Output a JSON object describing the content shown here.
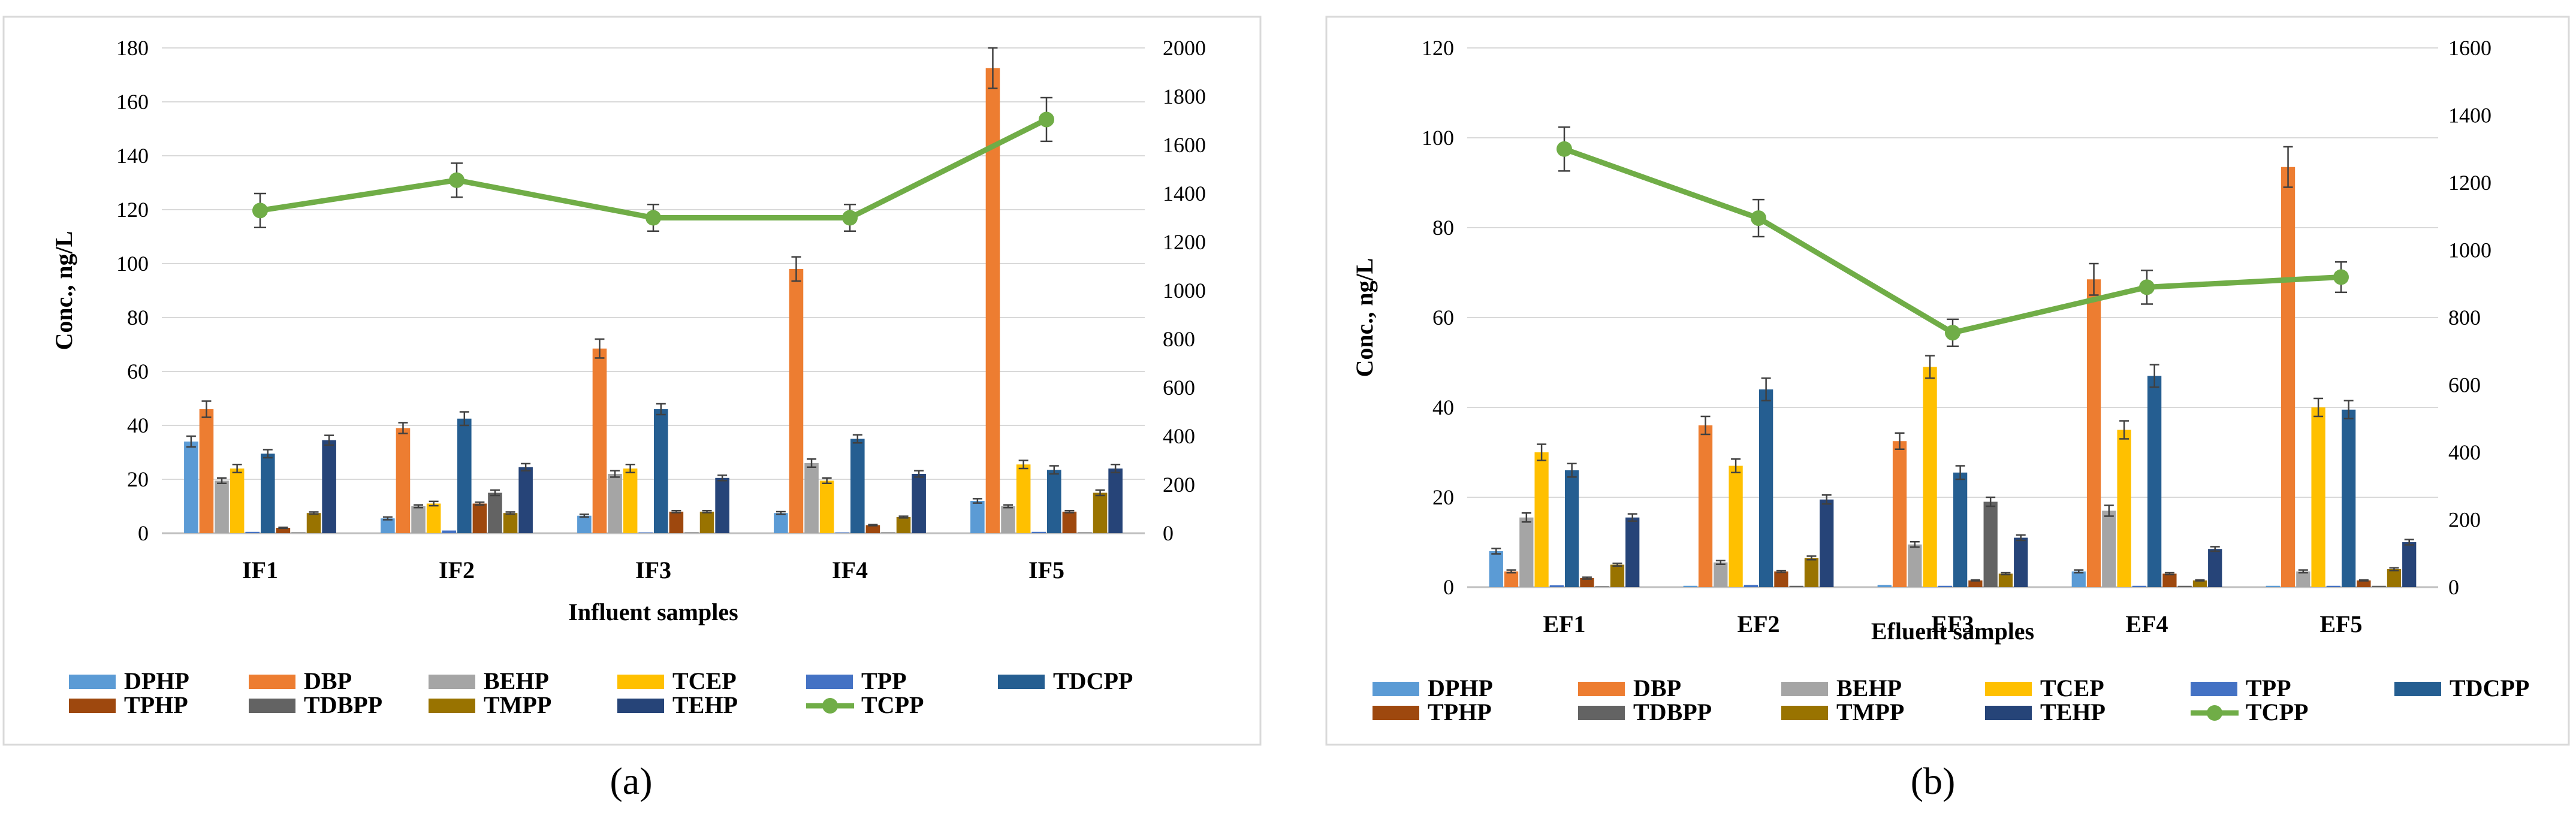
{
  "colors": {
    "DPHP": "#5b9bd5",
    "DBP": "#ed7d31",
    "BEHP": "#a5a5a5",
    "TCEP": "#ffc000",
    "TPP": "#4472c4",
    "TDCPP": "#255e91",
    "TPHP": "#9e480e",
    "TDBPP": "#636363",
    "TMPP": "#997300",
    "TEHP": "#264478",
    "TCPP": "#70ad47",
    "frame": "#d9d9d9",
    "grid": "#d9d9d9",
    "axis_text": "#000000",
    "error_bar": "#404040"
  },
  "chart_data": [
    {
      "type": "bar",
      "panel_label": "(a)",
      "xlabel": "Influent samples",
      "ylabel": "Conc., ng/L",
      "ylim": [
        0,
        180
      ],
      "yticks": [
        "0",
        "20",
        "40",
        "60",
        "80",
        "100",
        "120",
        "140",
        "160",
        "180"
      ],
      "y2lim": [
        0,
        2000
      ],
      "y2ticks": [
        "0",
        "200",
        "400",
        "600",
        "800",
        "1000",
        "1200",
        "1400",
        "1600",
        "1800",
        "2000"
      ],
      "categories": [
        "IF1",
        "IF2",
        "IF3",
        "IF4",
        "IF5"
      ],
      "series": [
        {
          "name": "DPHP",
          "values": [
            34,
            5.5,
            6.5,
            7.5,
            12
          ],
          "errors": [
            2,
            0.5,
            0.5,
            0.5,
            0.8
          ]
        },
        {
          "name": "DBP",
          "values": [
            46,
            39,
            68.5,
            98,
            172.5
          ],
          "errors": [
            3,
            2,
            3.5,
            4.5,
            7.5
          ]
        },
        {
          "name": "BEHP",
          "values": [
            19.5,
            10,
            22,
            26,
            10
          ],
          "errors": [
            1,
            0.5,
            1.2,
            1.5,
            0.5
          ]
        },
        {
          "name": "TCEP",
          "values": [
            24,
            11,
            24,
            19.5,
            25.5
          ],
          "errors": [
            1.5,
            0.8,
            1.5,
            1,
            1.5
          ]
        },
        {
          "name": "TPP",
          "values": [
            0.5,
            1,
            0.3,
            0.3,
            0.5
          ],
          "errors": [
            0,
            0,
            0,
            0,
            0
          ]
        },
        {
          "name": "TDCPP",
          "values": [
            29.5,
            42.5,
            46,
            35,
            23.5
          ],
          "errors": [
            1.5,
            2.5,
            2,
            1.5,
            1.5
          ]
        },
        {
          "name": "TPHP",
          "values": [
            2,
            11,
            8,
            3,
            8
          ],
          "errors": [
            0.2,
            0.5,
            0.4,
            0.2,
            0.4
          ]
        },
        {
          "name": "TDBPP",
          "values": [
            0.3,
            15,
            0.3,
            0.3,
            0.3
          ],
          "errors": [
            0,
            1,
            0,
            0,
            0
          ]
        },
        {
          "name": "TMPP",
          "values": [
            7.5,
            7.5,
            8,
            6,
            15
          ],
          "errors": [
            0.4,
            0.4,
            0.4,
            0.3,
            1
          ]
        },
        {
          "name": "TEHP",
          "values": [
            34.5,
            24.5,
            20.5,
            22,
            24
          ],
          "errors": [
            1.8,
            1.3,
            1,
            1.2,
            1.5
          ]
        }
      ],
      "line": {
        "name": "TCPP",
        "axis": "secondary",
        "values": [
          1330,
          1455,
          1300,
          1300,
          1705
        ],
        "errors": [
          70,
          70,
          55,
          55,
          90
        ]
      },
      "legend_position": "bottom"
    },
    {
      "type": "bar",
      "panel_label": "(b)",
      "xlabel": "Efluent samples",
      "ylabel": "Conc., ng/L",
      "ylim": [
        0,
        120
      ],
      "yticks": [
        "0",
        "20",
        "40",
        "60",
        "80",
        "100",
        "120"
      ],
      "y2lim": [
        0,
        1600
      ],
      "y2ticks": [
        "0",
        "200",
        "400",
        "600",
        "800",
        "1000",
        "1200",
        "1400",
        "1600"
      ],
      "categories": [
        "EF1",
        "EF2",
        "EF3",
        "EF4",
        "EF5"
      ],
      "series": [
        {
          "name": "DPHP",
          "values": [
            8,
            0.3,
            0.5,
            3.5,
            0.3
          ],
          "errors": [
            0.6,
            0,
            0,
            0.3,
            0
          ]
        },
        {
          "name": "DBP",
          "values": [
            3.5,
            36,
            32.5,
            68.5,
            93.5
          ],
          "errors": [
            0.3,
            2,
            1.8,
            3.5,
            4.5
          ]
        },
        {
          "name": "BEHP",
          "values": [
            15.5,
            5.5,
            9.5,
            17,
            3.5
          ],
          "errors": [
            1,
            0.4,
            0.6,
            1.2,
            0.3
          ]
        },
        {
          "name": "TCEP",
          "values": [
            30,
            27,
            49,
            35,
            40
          ],
          "errors": [
            1.8,
            1.5,
            2.5,
            2,
            2
          ]
        },
        {
          "name": "TPP",
          "values": [
            0.4,
            0.5,
            0.3,
            0.3,
            0.3
          ],
          "errors": [
            0,
            0,
            0,
            0,
            0
          ]
        },
        {
          "name": "TDCPP",
          "values": [
            26,
            44,
            25.5,
            47,
            39.5
          ],
          "errors": [
            1.5,
            2.5,
            1.5,
            2.5,
            2
          ]
        },
        {
          "name": "TPHP",
          "values": [
            2,
            3.5,
            1.5,
            3,
            1.5
          ],
          "errors": [
            0.2,
            0.2,
            0.1,
            0.2,
            0.1
          ]
        },
        {
          "name": "TDBPP",
          "values": [
            0.2,
            0.3,
            19,
            0.3,
            0.3
          ],
          "errors": [
            0,
            0,
            1,
            0,
            0
          ]
        },
        {
          "name": "TMPP",
          "values": [
            5,
            6.5,
            3,
            1.5,
            4
          ],
          "errors": [
            0.3,
            0.4,
            0.2,
            0.1,
            0.3
          ]
        },
        {
          "name": "TEHP",
          "values": [
            15.5,
            19.5,
            11,
            8.5,
            10
          ],
          "errors": [
            0.8,
            1,
            0.6,
            0.5,
            0.6
          ]
        }
      ],
      "line": {
        "name": "TCPP",
        "axis": "secondary",
        "values": [
          1300,
          1095,
          755,
          890,
          920
        ],
        "errors": [
          65,
          55,
          40,
          50,
          45
        ]
      },
      "legend_position": "bottom"
    }
  ]
}
